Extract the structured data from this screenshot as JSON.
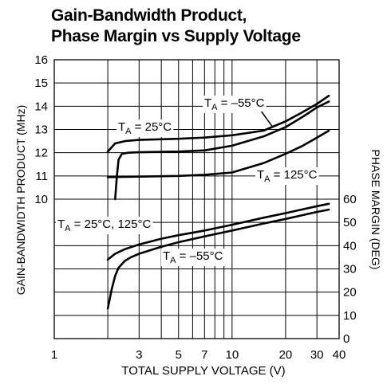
{
  "title_line1": "Gain-Bandwidth Product,",
  "title_line2": "Phase Margin vs Supply Voltage",
  "chart_data": {
    "type": "line",
    "title": "Gain-Bandwidth Product, Phase Margin vs Supply Voltage",
    "xlabel": "TOTAL SUPPLY VOLTAGE (V)",
    "ylabel_left": "GAIN-BANDWIDTH PRODUCT (MHz)",
    "ylabel_right": "PHASE MARGIN (DEG)",
    "x_scale": "log",
    "xlim": [
      1,
      40
    ],
    "x_ticks": [
      "1",
      "3",
      "5",
      "7",
      "10",
      "20",
      "30",
      "40"
    ],
    "ylim_left": [
      10,
      16
    ],
    "y_ticks_left": [
      "10",
      "11",
      "12",
      "13",
      "14",
      "15",
      "16"
    ],
    "ylim_right": [
      0,
      60
    ],
    "y_ticks_right": [
      "0",
      "10",
      "20",
      "30",
      "40",
      "50",
      "60"
    ],
    "grid": true,
    "gbw_series": [
      {
        "name": "T_A = –55°C",
        "x": [
          2,
          2.2,
          2.5,
          3,
          5,
          7,
          10,
          15,
          20,
          25,
          30,
          35
        ],
        "values": [
          12.05,
          12.4,
          12.5,
          12.55,
          12.6,
          12.65,
          12.75,
          12.95,
          13.35,
          13.75,
          14.1,
          14.45
        ]
      },
      {
        "name": "T_A = 25°C",
        "x": [
          2.2,
          2.25,
          2.3,
          2.4,
          2.6,
          3,
          5,
          7,
          10,
          15,
          20,
          25,
          30,
          35
        ],
        "values": [
          10,
          11.0,
          11.7,
          11.95,
          12.0,
          12.02,
          12.05,
          12.1,
          12.3,
          12.7,
          13.1,
          13.55,
          13.95,
          14.2
        ]
      },
      {
        "name": "T_A = 125°C",
        "x": [
          2,
          3,
          5,
          7,
          10,
          15,
          20,
          25,
          30,
          35
        ],
        "values": [
          10.95,
          10.97,
          11.0,
          11.05,
          11.15,
          11.55,
          11.95,
          12.3,
          12.65,
          12.95
        ]
      }
    ],
    "phase_margin_series": [
      {
        "name": "T_A = 25°C, 125°C",
        "x": [
          2,
          2.2,
          2.5,
          3,
          4,
          5,
          7,
          10,
          15,
          20,
          30,
          35
        ],
        "values": [
          34,
          36.5,
          38.5,
          40.5,
          43,
          44.5,
          46.5,
          49,
          52,
          54,
          57,
          58
        ]
      },
      {
        "name": "T_A = –55°C",
        "x": [
          2,
          2.05,
          2.1,
          2.2,
          2.3,
          2.5,
          2.7,
          3,
          4,
          5,
          7,
          10,
          15,
          20,
          30,
          35
        ],
        "values": [
          13,
          17,
          21,
          27,
          30.5,
          33.5,
          35,
          36.5,
          39.5,
          41.5,
          44,
          46.5,
          49.5,
          51.5,
          54.5,
          55.5
        ]
      }
    ],
    "labels": {
      "gbw_m55": "T_A = –55°C",
      "gbw_25": "T_A = 25°C",
      "gbw_125": "T_A = 125°C",
      "pm_25_125": "T_A = 25°C, 125°C",
      "pm_m55": "T_A = –55°C"
    }
  }
}
